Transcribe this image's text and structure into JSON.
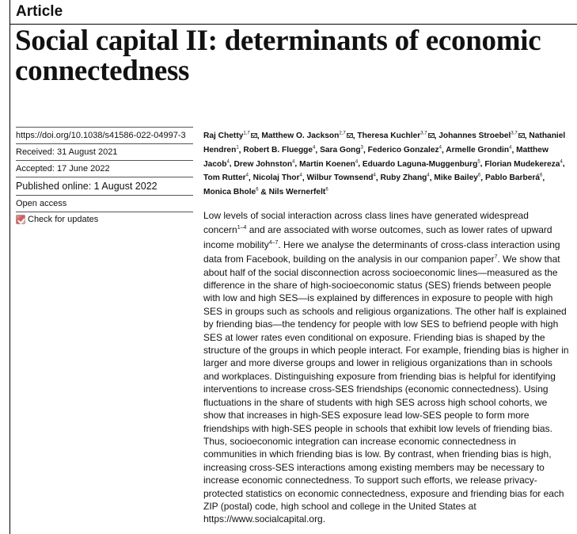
{
  "label": "Article",
  "title": "Social capital II: determinants of economic connectedness",
  "meta": {
    "doi": "https://doi.org/10.1038/s41586-022-04997-3",
    "received": "Received: 31 August 2021",
    "accepted": "Accepted: 17 June 2022",
    "published": "Published online: 1 August 2022",
    "open_access": "Open access",
    "check_updates": "Check for updates"
  },
  "authors": [
    {
      "name": "Raj Chetty",
      "sup": "1,7",
      "email": true
    },
    {
      "name": "Matthew O. Jackson",
      "sup": "2,7",
      "email": true
    },
    {
      "name": "Theresa Kuchler",
      "sup": "3,7",
      "email": true
    },
    {
      "name": "Johannes Stroebel",
      "sup": "3,7",
      "email": true
    },
    {
      "name": "Nathaniel Hendren",
      "sup": "1",
      "email": false
    },
    {
      "name": "Robert B. Fluegge",
      "sup": "4",
      "email": false
    },
    {
      "name": "Sara Gong",
      "sup": "3",
      "email": false
    },
    {
      "name": "Federico Gonzalez",
      "sup": "4",
      "email": false
    },
    {
      "name": "Armelle Grondin",
      "sup": "4",
      "email": false
    },
    {
      "name": "Matthew Jacob",
      "sup": "4",
      "email": false
    },
    {
      "name": "Drew Johnston",
      "sup": "4",
      "email": false
    },
    {
      "name": "Martin Koenen",
      "sup": "4",
      "email": false
    },
    {
      "name": "Eduardo Laguna-Muggenburg",
      "sup": "5",
      "email": false
    },
    {
      "name": "Florian Mudekereza",
      "sup": "4",
      "email": false
    },
    {
      "name": "Tom Rutter",
      "sup": "4",
      "email": false
    },
    {
      "name": "Nicolaj Thor",
      "sup": "4",
      "email": false
    },
    {
      "name": "Wilbur Townsend",
      "sup": "4",
      "email": false
    },
    {
      "name": "Ruby Zhang",
      "sup": "4",
      "email": false
    },
    {
      "name": "Mike Bailey",
      "sup": "6",
      "email": false
    },
    {
      "name": "Pablo Barberá",
      "sup": "6",
      "email": false
    },
    {
      "name": "Monica Bhole",
      "sup": "6",
      "email": false
    },
    {
      "name": "Nils Wernerfelt",
      "sup": "6",
      "email": false
    }
  ],
  "abstract": [
    {
      "t": "Low levels of social interaction across class lines have generated widespread concern"
    },
    {
      "s": "1–4"
    },
    {
      "t": " and are associated with worse outcomes, such as lower rates of upward income mobility"
    },
    {
      "s": "4–7"
    },
    {
      "t": ". Here we analyse the determinants of cross-class interaction using data from Facebook, building on the analysis in our companion paper"
    },
    {
      "s": "7"
    },
    {
      "t": ". We show that about half of the social disconnection across socioeconomic lines—measured as the difference in the share of high-socioeconomic status (SES) friends between people with low and high SES—is explained by differences in exposure to people with high SES in groups such as schools and religious organizations. The other half is explained by friending bias—the tendency for people with low SES to befriend people with high SES at lower rates even conditional on exposure. Friending bias is shaped by the structure of the groups in which people interact. For example, friending bias is higher in larger and more diverse groups and lower in religious organizations than in schools and workplaces. Distinguishing exposure from friending bias is helpful for identifying interventions to increase cross-SES friendships (economic connectedness). Using fluctuations in the share of students with high SES across high school cohorts, we show that increases in high-SES exposure lead low-SES people to form more friendships with high-SES people in schools that exhibit low levels of friending bias. Thus, socioeconomic integration can increase economic connectedness in communities in which friending bias is low. By contrast, when friending bias is high, increasing cross-SES interactions among existing members may be necessary to increase economic connectedness. To support such efforts, we release privacy-protected statistics on economic connectedness, exposure and friending bias for each ZIP (postal) code, high school and college in the United States at https://www.socialcapital.org."
    }
  ]
}
